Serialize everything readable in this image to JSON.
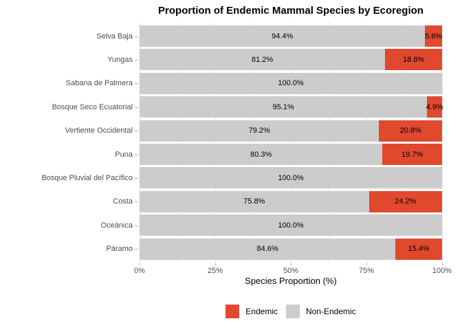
{
  "chart_data": {
    "type": "bar",
    "orientation": "horizontal",
    "stacked": true,
    "title": "Proportion of Endemic Mammal Species by Ecoregion",
    "xlabel": "Species Proportion (%)",
    "xlim": [
      0,
      100
    ],
    "grid": true,
    "minor_grid_step": 12.5,
    "x_ticks": [
      {
        "value": 0,
        "label": "0%"
      },
      {
        "value": 25,
        "label": "25%"
      },
      {
        "value": 50,
        "label": "50%"
      },
      {
        "value": 75,
        "label": "75%"
      },
      {
        "value": 100,
        "label": "100%"
      }
    ],
    "categories": [
      "Selva Baja",
      "Yungas",
      "Sabana de Palmera",
      "Bosque Seco Ecuatorial",
      "Vertiente Occidental",
      "Puna",
      "Bosque Pluvial del Pacífico",
      "Costa",
      "Oceánica",
      "Páramo"
    ],
    "series": [
      {
        "name": "Non-Endemic",
        "color": "#cccccc",
        "values": [
          94.4,
          81.2,
          100.0,
          95.1,
          79.2,
          80.3,
          100.0,
          75.8,
          100.0,
          84.6
        ],
        "labels": [
          "94.4%",
          "81.2%",
          "100.0%",
          "95.1%",
          "79.2%",
          "80.3%",
          "100.0%",
          "75.8%",
          "100.0%",
          "84.6%"
        ]
      },
      {
        "name": "Endemic",
        "color": "#e1492e",
        "values": [
          5.6,
          18.8,
          0,
          4.9,
          20.8,
          19.7,
          0,
          24.2,
          0,
          15.4
        ],
        "labels": [
          "5.6%",
          "18.8%",
          "",
          "4.9%",
          "20.8%",
          "19.7%",
          "",
          "24.2%",
          "",
          "15.4%"
        ]
      }
    ],
    "legend": {
      "position": "bottom",
      "entries": [
        {
          "label": "Endemic",
          "color": "#e1492e"
        },
        {
          "label": "Non-Endemic",
          "color": "#cccccc"
        }
      ]
    },
    "colors": {
      "background": "#ffffff",
      "grid": "#e7e7e7",
      "tick": "#b3b3b3",
      "axis_text": "#4d4d4d",
      "label_text": "#000000"
    }
  }
}
